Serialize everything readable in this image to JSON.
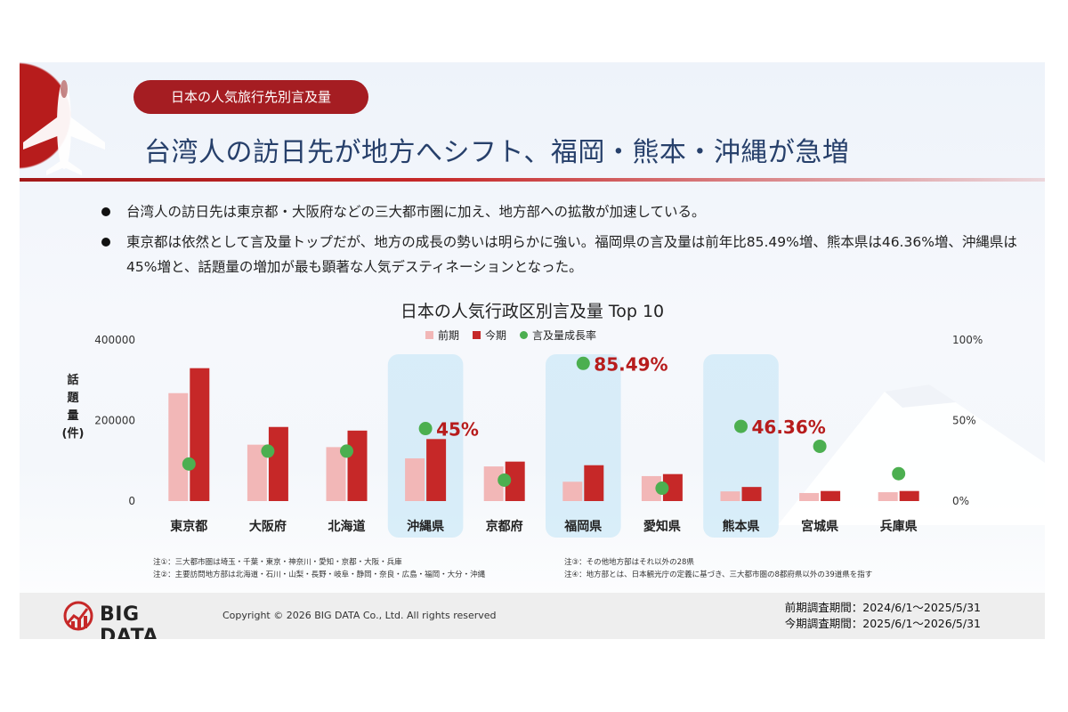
{
  "header": {
    "tag": "日本の人気旅行先別言及量",
    "headline": "台湾人の訪日先が地方へシフト、福岡・熊本・沖縄が急増"
  },
  "bullets": [
    "台湾人の訪日先は東京都・大阪府などの三大都市圏に加え、地方部への拡散が加速している。",
    "東京都は依然として言及量トップだが、地方の成長の勢いは明らかに強い。福岡県の言及量は前年比85.49%増、熊本県は46.36%増、沖縄県は45%増と、話題量の増加が最も顕著な人気デスティネーションとなった。"
  ],
  "chart_data": {
    "type": "bar",
    "title": "日本の人気行政区別言及量 Top 10",
    "ylabel": "話題量(件)",
    "ylim": [
      0,
      400000
    ],
    "y2lim": [
      0,
      100
    ],
    "yticks": [
      "400000",
      "200000",
      "0"
    ],
    "y2ticks": [
      "100%",
      "50%",
      "0%"
    ],
    "categories": [
      "東京都",
      "大阪府",
      "北海道",
      "沖縄県",
      "京都府",
      "福岡県",
      "愛知県",
      "熊本県",
      "宮城県",
      "兵庫県"
    ],
    "series": [
      {
        "name": "前期",
        "values": [
          268000,
          140000,
          134000,
          106000,
          86000,
          48000,
          62000,
          24000,
          20000,
          22000
        ],
        "color": "#f2b7b7"
      },
      {
        "name": "今期",
        "values": [
          330000,
          184000,
          175000,
          154000,
          98000,
          89000,
          67000,
          35000,
          25000,
          25000
        ],
        "color": "#c62828"
      },
      {
        "name": "言及量成長率",
        "values": [
          23,
          31,
          31,
          45,
          13,
          85.49,
          8,
          46.36,
          34,
          17
        ],
        "color": "#4caf50"
      }
    ],
    "highlight": [
      "沖縄県",
      "福岡県",
      "熊本県"
    ],
    "rate_labels": [
      {
        "category": "沖縄県",
        "text": "45%"
      },
      {
        "category": "福岡県",
        "text": "85.49%"
      },
      {
        "category": "熊本県",
        "text": "46.36%"
      }
    ],
    "label_color": "#b71c1c"
  },
  "notes": {
    "left": [
      "注①：三大都市圏は埼玉・千葉・東京・神奈川・愛知・京都・大阪・兵庫",
      "注②：主要訪問地方部は北海道・石川・山梨・長野・岐阜・静岡・奈良・広島・福岡・大分・沖縄"
    ],
    "right": [
      "注③：その他地方部はそれ以外の28県",
      "注④：地方部とは、日本観光庁の定義に基づき、三大都市圏の8都府県以外の39道県を指す"
    ]
  },
  "footer": {
    "logo": "BIG DATA",
    "copyright": "Copyright © 2026 BIG DATA Co., Ltd. All rights reserved",
    "period_prev": "前期調査期間：2024/6/1～2025/5/31",
    "period_curr": "今期調査期間：2025/6/1～2026/5/31"
  },
  "icons": [
    "airplane-icon",
    "mount-fuji-icon",
    "big-data-logo-icon"
  ]
}
